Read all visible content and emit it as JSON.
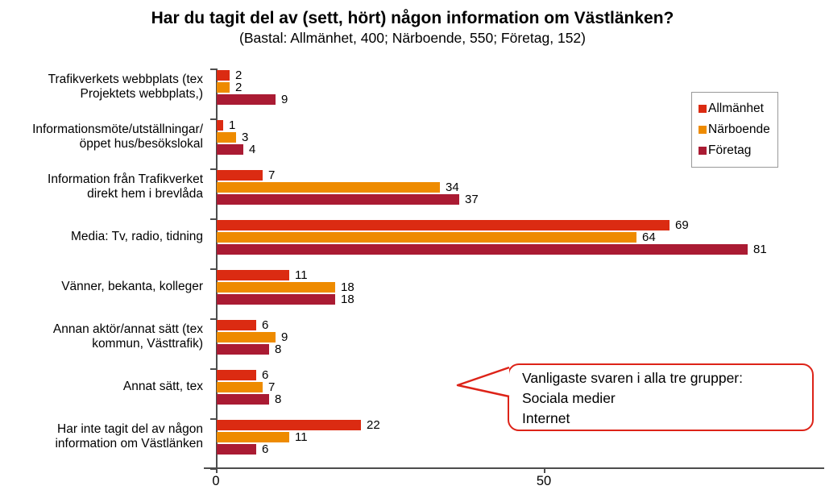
{
  "chart_data": {
    "type": "bar",
    "orientation": "horizontal",
    "title": "Har du tagit del av (sett, hört) någon information om Västlänken?",
    "subtitle": "(Bastal: Allmänhet, 400; Närboende, 550; Företag, 152)",
    "categories": [
      "Trafikverkets webbplats (tex\nProjektets webbplats,)",
      "Informationsmöte/utställningar/\nöppet hus/besökslokal",
      "Information från Trafikverket\ndirekt hem i brevlåda",
      "Media: Tv, radio, tidning",
      "Vänner, bekanta, kolleger",
      "Annan aktör/annat sätt (tex\nkommun, Västtrafik)",
      "Annat sätt, tex",
      "Har inte tagit del av någon\ninformation om Västlänken"
    ],
    "series": [
      {
        "name": "Allmänhet",
        "color": "#db2b12",
        "values": [
          2,
          1,
          7,
          69,
          11,
          6,
          6,
          22
        ]
      },
      {
        "name": "Närboende",
        "color": "#ee8b00",
        "values": [
          2,
          3,
          34,
          64,
          18,
          9,
          7,
          11
        ]
      },
      {
        "name": "Företag",
        "color": "#aa1b33",
        "values": [
          9,
          4,
          37,
          81,
          18,
          8,
          8,
          6
        ]
      }
    ],
    "xlim": [
      0,
      92.8
    ],
    "x_ticks": [
      0,
      50
    ],
    "grid": false,
    "legend_position": "top-right",
    "value_labels": true,
    "axis_color": "#4d4d4d",
    "annotation": {
      "lines": [
        "Vanligaste svaren i alla tre grupper:",
        "Sociala medier",
        "Internet"
      ],
      "border_color": "#dd2318"
    }
  }
}
